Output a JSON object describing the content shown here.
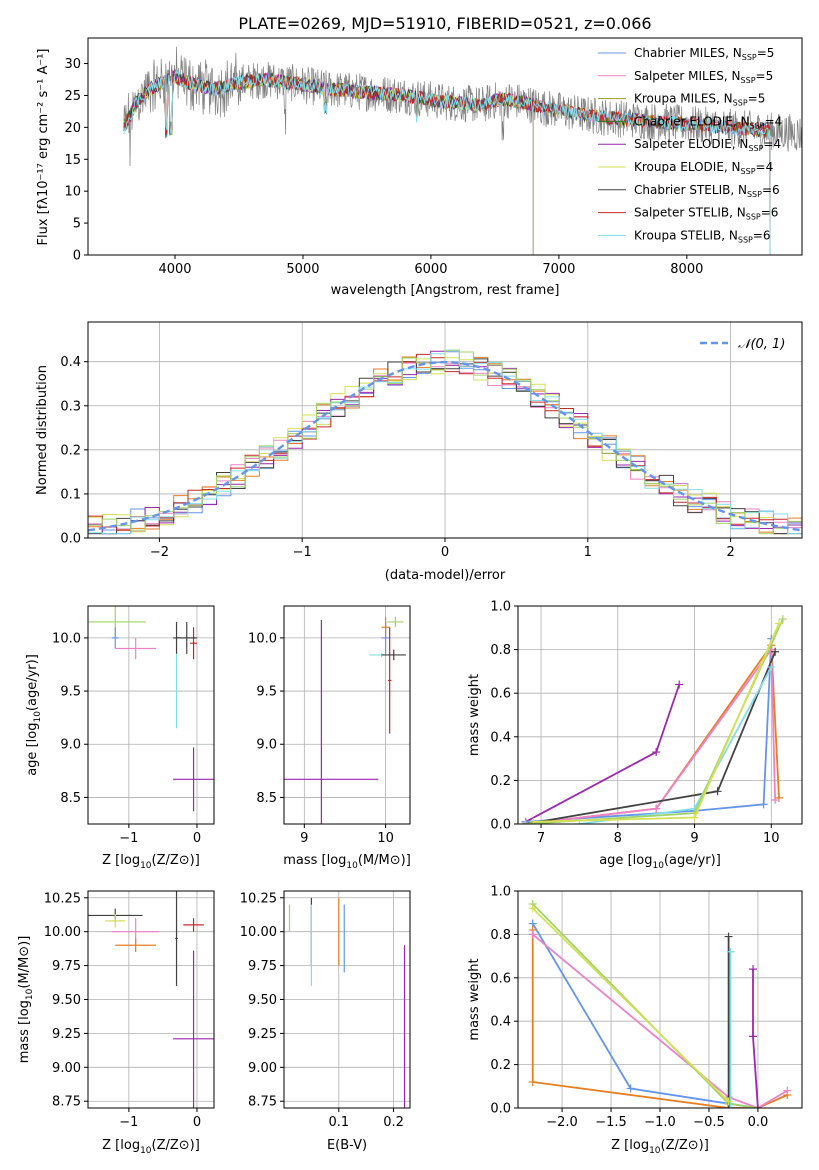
{
  "figure": {
    "title": "PLATE=0269, MJD=51910, FIBERID=0521, z=0.066"
  },
  "chart_data": [
    {
      "id": "spectrum",
      "type": "line",
      "xlabel": "wavelength [Angstrom, rest frame]",
      "ylabel": "Flux [fλ10⁻¹⁷ erg cm⁻² s⁻¹ A⁻¹]",
      "xlim": [
        3320,
        8900
      ],
      "ylim": [
        0,
        34
      ],
      "xticks": [
        4000,
        5000,
        6000,
        7000,
        8000
      ],
      "yticks": [
        0,
        5,
        10,
        15,
        20,
        25,
        30
      ],
      "grid": false,
      "legend_position": "top-right",
      "data_line": {
        "color": "#808080",
        "x_start": 3600,
        "x_end": 8900
      },
      "model_anchor_x": [
        3600,
        3700,
        3800,
        3900,
        4000,
        4100,
        4300,
        4500,
        4700,
        4900,
        5200,
        5500,
        5800,
        6100,
        6400,
        6550,
        6700,
        6900,
        7200,
        7400,
        7700,
        8000,
        8300,
        8600,
        8900
      ],
      "model_anchor_y": [
        20,
        24,
        26,
        27,
        28,
        27,
        26,
        27,
        27.5,
        27,
        26,
        25.5,
        25,
        24,
        23.5,
        24.5,
        24,
        23,
        22,
        21.5,
        21,
        20.5,
        20,
        19.5,
        19
      ],
      "series": [
        {
          "name": "Chabrier MILES, NSSP=5",
          "label_prefix": "Chabrier MILES, N",
          "label_sub": "SSP",
          "label_suffix": "=5",
          "color": "#6495ed",
          "x_end": 8650
        },
        {
          "name": "Salpeter MILES, NSSP=5",
          "label_prefix": "Salpeter MILES, N",
          "label_sub": "SSP",
          "label_suffix": "=5",
          "color": "#ee82c8",
          "x_end": 8650
        },
        {
          "name": "Kroupa MILES, NSSP=5",
          "label_prefix": "Kroupa MILES, N",
          "label_sub": "SSP",
          "label_suffix": "=5",
          "color": "#9a9a20",
          "x_end": 8650
        },
        {
          "name": "Chabrier ELODIE, NSSP=4",
          "label_prefix": "Chabrier ELODIE, N",
          "label_sub": "SSP",
          "label_suffix": "=4",
          "color": "#2e7d32",
          "x_end": 6800
        },
        {
          "name": "Salpeter ELODIE, NSSP=4",
          "label_prefix": "Salpeter ELODIE, N",
          "label_sub": "SSP",
          "label_suffix": "=4",
          "color": "#9c27b0",
          "x_end": 6800
        },
        {
          "name": "Kroupa ELODIE, NSSP=4",
          "label_prefix": "Kroupa ELODIE, N",
          "label_sub": "SSP",
          "label_suffix": "=4",
          "color": "#d4e157",
          "x_end": 6800
        },
        {
          "name": "Chabrier STELIB, NSSP=6",
          "label_prefix": "Chabrier STELIB, N",
          "label_sub": "SSP",
          "label_suffix": "=6",
          "color": "#424242",
          "x_end": 8650
        },
        {
          "name": "Salpeter STELIB, NSSP=6",
          "label_prefix": "Salpeter STELIB, N",
          "label_sub": "SSP",
          "label_suffix": "=6",
          "color": "#c62828",
          "x_end": 8650
        },
        {
          "name": "Kroupa STELIB, NSSP=6",
          "label_prefix": "Kroupa STELIB, N",
          "label_sub": "SSP",
          "label_suffix": "=6",
          "color": "#80deea",
          "x_end": 8650
        }
      ]
    },
    {
      "id": "residuals",
      "type": "line",
      "xlabel": "(data-model)/error",
      "ylabel": "Normed distribution",
      "xlim": [
        -2.5,
        2.5
      ],
      "ylim": [
        0,
        0.49
      ],
      "xticks": [
        -2,
        -1,
        0,
        1,
        2
      ],
      "yticks": [
        0.0,
        0.1,
        0.2,
        0.3,
        0.4
      ],
      "grid": true,
      "legend_position": "top-right",
      "gaussian": {
        "name": "𝒩(0, 1)",
        "color": "#6495ed"
      },
      "histogram": {
        "bin_start": -2.5,
        "bin_width": 0.1,
        "step_colors": [
          "#6495ed",
          "#ee82c8",
          "#e67e22",
          "#d4e157",
          "#9c27b0",
          "#424242",
          "#c62828",
          "#80deea",
          "#a0d468"
        ]
      }
    },
    {
      "id": "age_vs_Z",
      "type": "scatter",
      "xlabel_main": "Z [log",
      "xlabel_sub": "10",
      "xlabel_tail": "(Z/Z⊙)]",
      "ylabel_main": "age  [log",
      "ylabel_sub": "10",
      "ylabel_tail": "(age/yr)]",
      "xlim": [
        -1.6,
        0.25
      ],
      "ylim": [
        8.25,
        10.3
      ],
      "xticks": [
        -1,
        0
      ],
      "yticks": [
        8.5,
        9.0,
        9.5,
        10.0
      ],
      "grid": true,
      "points": [
        {
          "x": -1.2,
          "y": 10.15,
          "xerr": 0.45,
          "yerr": 0.15,
          "color": "#a0d468"
        },
        {
          "x": -1.2,
          "y": 10.0,
          "xerr": 0.05,
          "yerr": 0.1,
          "color": "#6495ed"
        },
        {
          "x": -0.9,
          "y": 9.9,
          "xerr": 0.3,
          "yerr": 0.1,
          "color": "#ee82c8"
        },
        {
          "x": -0.3,
          "y": 10.0,
          "xerr": 0.05,
          "yerr": 0.15,
          "color": "#424242"
        },
        {
          "x": -0.3,
          "y": 9.5,
          "xerr": 0.02,
          "yerr": 0.35,
          "color": "#80deea"
        },
        {
          "x": -0.05,
          "y": 9.95,
          "xerr": 0.05,
          "yerr": 0.15,
          "color": "#c62828"
        },
        {
          "x": -0.15,
          "y": 10.0,
          "xerr": 0.15,
          "yerr": 0.15,
          "color": "#424242"
        },
        {
          "x": -0.05,
          "y": 8.67,
          "xerr": 0.3,
          "yerr": 0.3,
          "color": "#9c27b0"
        }
      ]
    },
    {
      "id": "age_vs_mass",
      "type": "scatter",
      "xlabel_main": "mass [log",
      "xlabel_sub": "10",
      "xlabel_tail": "(M/M⊙)]",
      "xlim": [
        8.75,
        10.3
      ],
      "ylim": [
        8.25,
        10.3
      ],
      "xticks": [
        9,
        10
      ],
      "yticks": [
        8.5,
        9.0,
        9.5,
        10.0
      ],
      "grid": true,
      "points": [
        {
          "x": 9.21,
          "y": 8.67,
          "xerr": 0.7,
          "yerr": 1.5,
          "color": "#9c27b0"
        },
        {
          "x": 10.0,
          "y": 10.0,
          "xerr": 0.05,
          "yerr": 0.15,
          "color": "#6495ed"
        },
        {
          "x": 9.95,
          "y": 9.84,
          "xerr": 0.15,
          "yerr": 0.02,
          "color": "#80deea"
        },
        {
          "x": 10.05,
          "y": 9.6,
          "xerr": 0.02,
          "yerr": 0.5,
          "color": "#c62828"
        },
        {
          "x": 10.1,
          "y": 9.84,
          "xerr": 0.15,
          "yerr": 0.05,
          "color": "#424242"
        },
        {
          "x": 10.12,
          "y": 10.15,
          "xerr": 0.1,
          "yerr": 0.05,
          "color": "#a0d468"
        },
        {
          "x": 10.0,
          "y": 10.1,
          "xerr": 0.05,
          "yerr": 0.1,
          "color": "#e67e22"
        }
      ]
    },
    {
      "id": "massweight_vs_age",
      "type": "line",
      "xlabel_main": "age  [log",
      "xlabel_sub": "10",
      "xlabel_tail": "(age/yr)]",
      "ylabel": "mass weight",
      "xlim": [
        6.7,
        10.4
      ],
      "ylim": [
        0.0,
        1.0
      ],
      "xticks": [
        7,
        8,
        9,
        10
      ],
      "yticks": [
        0.0,
        0.2,
        0.4,
        0.6,
        0.8,
        1.0
      ],
      "grid": true,
      "series": [
        {
          "color": "#9c27b0",
          "x": [
            6.8,
            8.5,
            8.8
          ],
          "y": [
            0.01,
            0.33,
            0.64
          ]
        },
        {
          "color": "#6495ed",
          "x": [
            6.8,
            9.0,
            9.9,
            10.0
          ],
          "y": [
            0.01,
            0.06,
            0.09,
            0.85
          ]
        },
        {
          "color": "#e67e22",
          "x": [
            6.8,
            8.5,
            10.0,
            10.1
          ],
          "y": [
            0.0,
            0.07,
            0.82,
            0.12
          ]
        },
        {
          "color": "#ee82c8",
          "x": [
            6.8,
            8.5,
            10.0,
            10.05
          ],
          "y": [
            0.0,
            0.07,
            0.8,
            0.11
          ]
        },
        {
          "color": "#424242",
          "x": [
            6.8,
            9.3,
            10.05
          ],
          "y": [
            0.0,
            0.15,
            0.79
          ]
        },
        {
          "color": "#80deea",
          "x": [
            7.5,
            9.0,
            10.0
          ],
          "y": [
            0.0,
            0.07,
            0.72
          ]
        },
        {
          "color": "#a0d468",
          "x": [
            6.8,
            9.0,
            10.15
          ],
          "y": [
            0.0,
            0.05,
            0.94
          ]
        },
        {
          "color": "#d4e157",
          "x": [
            6.9,
            9.0,
            10.1
          ],
          "y": [
            0.01,
            0.03,
            0.92
          ]
        }
      ]
    },
    {
      "id": "mass_vs_Z",
      "type": "scatter",
      "xlabel_main": "Z [log",
      "xlabel_sub": "10",
      "xlabel_tail": "(Z/Z⊙)]",
      "ylabel_main": "mass [log",
      "ylabel_sub": "10",
      "ylabel_tail": "(M/M⊙)]",
      "xlim": [
        -1.6,
        0.25
      ],
      "ylim": [
        8.7,
        10.3
      ],
      "xticks": [
        -1,
        0
      ],
      "yticks": [
        8.75,
        9.0,
        9.25,
        9.5,
        9.75,
        10.0,
        10.25
      ],
      "grid": true,
      "points": [
        {
          "x": -1.2,
          "y": 10.12,
          "xerr": 0.4,
          "yerr": 0.05,
          "color": "#424242"
        },
        {
          "x": -1.2,
          "y": 10.08,
          "xerr": 0.15,
          "yerr": 0.05,
          "color": "#d4e157"
        },
        {
          "x": -0.9,
          "y": 10.0,
          "xerr": 0.35,
          "yerr": 0.1,
          "color": "#ee82c8"
        },
        {
          "x": -0.9,
          "y": 9.9,
          "xerr": 0.3,
          "yerr": 0.05,
          "color": "#e67e22"
        },
        {
          "x": -0.3,
          "y": 9.95,
          "xerr": 0.02,
          "yerr": 0.35,
          "color": "#424242"
        },
        {
          "x": -0.05,
          "y": 10.05,
          "xerr": 0.15,
          "yerr": 0.05,
          "color": "#c62828"
        },
        {
          "x": -0.05,
          "y": 9.21,
          "xerr": 0.3,
          "yerr": 0.65,
          "color": "#9c27b0"
        }
      ]
    },
    {
      "id": "mass_vs_ebv",
      "type": "scatter",
      "xlabel": "E(B-V)",
      "xlim": [
        0.0,
        0.23
      ],
      "ylim": [
        8.7,
        10.3
      ],
      "xticks": [
        0.1,
        0.2
      ],
      "yticks": [
        8.75,
        9.0,
        9.25,
        9.5,
        9.75,
        10.0,
        10.25
      ],
      "grid": true,
      "points": [
        {
          "x": 0.01,
          "y": 10.1,
          "yerr": 0.1,
          "color": "#a0d468"
        },
        {
          "x": 0.05,
          "y": 10.0,
          "yerr": 0.25,
          "color": "#424242"
        },
        {
          "x": 0.05,
          "y": 9.9,
          "yerr": 0.3,
          "color": "#80deea"
        },
        {
          "x": 0.1,
          "y": 10.0,
          "yerr": 0.25,
          "color": "#e67e22"
        },
        {
          "x": 0.11,
          "y": 9.95,
          "yerr": 0.25,
          "color": "#6495ed"
        },
        {
          "x": 0.22,
          "y": 9.3,
          "yerr": 0.6,
          "color": "#9c27b0"
        }
      ]
    },
    {
      "id": "massweight_vs_Z",
      "type": "line",
      "xlabel_main": "Z [log",
      "xlabel_sub": "10",
      "xlabel_tail": "(Z/Z⊙)]",
      "ylabel": "mass weight",
      "xlim": [
        -2.45,
        0.45
      ],
      "ylim": [
        0.0,
        1.0
      ],
      "xticks": [
        -2.0,
        -1.5,
        -1.0,
        -0.5,
        0.0
      ],
      "yticks": [
        0.0,
        0.2,
        0.4,
        0.6,
        0.8,
        1.0
      ],
      "grid": true,
      "series": [
        {
          "color": "#6495ed",
          "x": [
            -2.3,
            -1.3,
            -0.3,
            0.0
          ],
          "y": [
            0.85,
            0.09,
            0.02,
            0.0
          ]
        },
        {
          "color": "#e67e22",
          "x": [
            -2.3,
            -2.3,
            -0.3,
            0.0,
            0.3
          ],
          "y": [
            0.82,
            0.12,
            0.0,
            0.0,
            0.06
          ]
        },
        {
          "color": "#ee82c8",
          "x": [
            -2.3,
            -0.3,
            0.0,
            0.3
          ],
          "y": [
            0.8,
            0.05,
            0.0,
            0.08
          ]
        },
        {
          "color": "#a0d468",
          "x": [
            -2.3,
            -0.3,
            0.0
          ],
          "y": [
            0.94,
            0.02,
            0.0
          ]
        },
        {
          "color": "#424242",
          "x": [
            -0.3,
            -0.3
          ],
          "y": [
            0.79,
            0.0
          ]
        },
        {
          "color": "#80deea",
          "x": [
            -0.28,
            -0.28
          ],
          "y": [
            0.72,
            0.0
          ]
        },
        {
          "color": "#9c27b0",
          "x": [
            -0.05,
            -0.05,
            0.0
          ],
          "y": [
            0.64,
            0.33,
            0.0
          ]
        },
        {
          "color": "#d4e157",
          "x": [
            -2.3,
            -0.3
          ],
          "y": [
            0.92,
            0.03
          ]
        }
      ]
    }
  ]
}
